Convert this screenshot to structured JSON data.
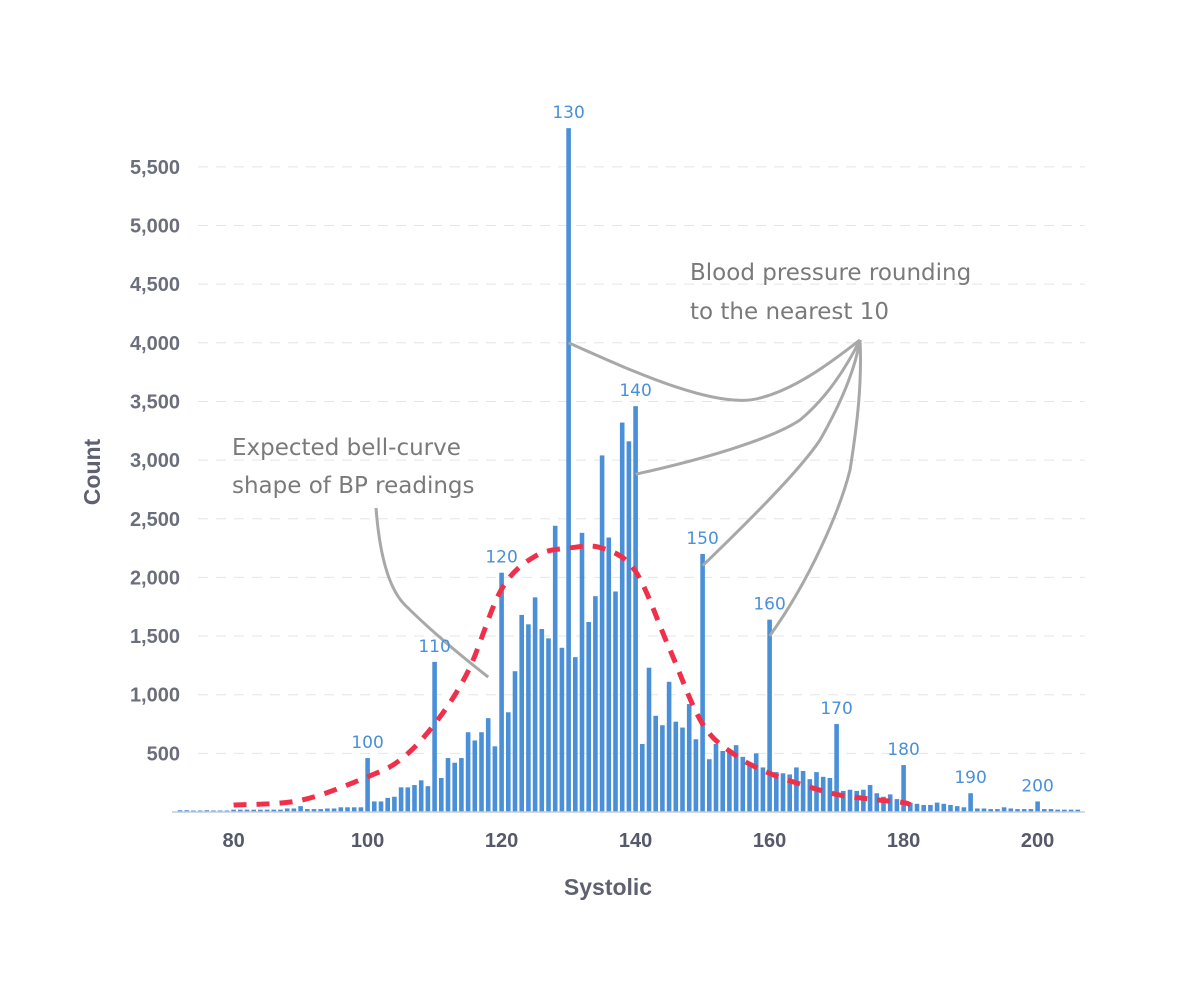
{
  "chart_data": {
    "type": "bar",
    "xlabel": "Systolic",
    "ylabel": "Count",
    "xlim": [
      72,
      207
    ],
    "ylim": [
      0,
      5900
    ],
    "y_ticks": [
      500,
      1000,
      1500,
      2000,
      2500,
      3000,
      3500,
      4000,
      4500,
      5000,
      5500
    ],
    "y_tick_labels": [
      "500",
      "1,000",
      "1,500",
      "2,000",
      "2,500",
      "3,000",
      "3,500",
      "4,000",
      "4,500",
      "5,000",
      "5,500"
    ],
    "x_ticks": [
      80,
      100,
      120,
      140,
      160,
      180,
      200
    ],
    "x_tick_labels": [
      "80",
      "100",
      "120",
      "140",
      "160",
      "180",
      "200"
    ],
    "grid": "horizontal dashed",
    "bar_color": "#4a90d9",
    "curve_color": "#f0304a",
    "series": [
      {
        "x": [
          72,
          73,
          74,
          75,
          76,
          77,
          78,
          79,
          80,
          81,
          82,
          83,
          84,
          85,
          86,
          87,
          88,
          89,
          90,
          91,
          92,
          93,
          94,
          95,
          96,
          97,
          98,
          99,
          100,
          101,
          102,
          103,
          104,
          105,
          106,
          107,
          108,
          109,
          110,
          111,
          112,
          113,
          114,
          115,
          116,
          117,
          118,
          119,
          120,
          121,
          122,
          123,
          124,
          125,
          126,
          127,
          128,
          129,
          130,
          131,
          132,
          133,
          134,
          135,
          136,
          137,
          138,
          139,
          140,
          141,
          142,
          143,
          144,
          145,
          146,
          147,
          148,
          149,
          150,
          151,
          152,
          153,
          154,
          155,
          156,
          157,
          158,
          159,
          160,
          161,
          162,
          163,
          164,
          165,
          166,
          167,
          168,
          169,
          170,
          171,
          172,
          173,
          174,
          175,
          176,
          177,
          178,
          179,
          180,
          181,
          182,
          183,
          184,
          185,
          186,
          187,
          188,
          189,
          190,
          191,
          192,
          193,
          194,
          195,
          196,
          197,
          198,
          199,
          200,
          201,
          202,
          203,
          204,
          205,
          206
        ],
        "values": [
          15,
          15,
          3,
          3,
          15,
          3,
          3,
          3,
          20,
          20,
          20,
          20,
          20,
          20,
          20,
          20,
          30,
          30,
          50,
          25,
          25,
          25,
          30,
          30,
          40,
          40,
          40,
          40,
          460,
          90,
          90,
          120,
          130,
          210,
          210,
          230,
          270,
          220,
          1280,
          290,
          460,
          420,
          460,
          680,
          610,
          680,
          800,
          560,
          2040,
          850,
          1200,
          1680,
          1600,
          1830,
          1560,
          1480,
          2440,
          1400,
          5830,
          1320,
          2380,
          1620,
          1840,
          3040,
          2340,
          1880,
          3320,
          3160,
          3460,
          580,
          1230,
          820,
          740,
          1110,
          770,
          720,
          920,
          620,
          2200,
          450,
          580,
          520,
          510,
          570,
          470,
          400,
          500,
          380,
          1640,
          340,
          330,
          320,
          380,
          350,
          280,
          340,
          300,
          290,
          750,
          180,
          190,
          180,
          190,
          230,
          160,
          130,
          150,
          110,
          400,
          80,
          70,
          60,
          60,
          80,
          70,
          60,
          50,
          40,
          160,
          30,
          30,
          25,
          25,
          40,
          30,
          25,
          25,
          25,
          90,
          25,
          25,
          20,
          20,
          20,
          20
        ]
      }
    ],
    "peak_labels": [
      {
        "x": 100,
        "y": 460,
        "text": "100"
      },
      {
        "x": 110,
        "y": 1280,
        "text": "110"
      },
      {
        "x": 120,
        "y": 2040,
        "text": "120"
      },
      {
        "x": 130,
        "y": 5830,
        "text": "130"
      },
      {
        "x": 140,
        "y": 3460,
        "text": "140"
      },
      {
        "x": 150,
        "y": 2200,
        "text": "150"
      },
      {
        "x": 160,
        "y": 1640,
        "text": "160"
      },
      {
        "x": 170,
        "y": 750,
        "text": "170"
      },
      {
        "x": 180,
        "y": 400,
        "text": "180"
      },
      {
        "x": 190,
        "y": 160,
        "text": "190"
      },
      {
        "x": 200,
        "y": 90,
        "text": "200"
      }
    ],
    "bell_curve": {
      "style": "dashed",
      "x": [
        80,
        90,
        100,
        105,
        110,
        115,
        120,
        125,
        130,
        135,
        140,
        145,
        150,
        155,
        160,
        165,
        170,
        175,
        180,
        181
      ],
      "values": [
        60,
        100,
        300,
        450,
        750,
        1200,
        1900,
        2180,
        2250,
        2250,
        2050,
        1400,
        750,
        480,
        330,
        230,
        150,
        110,
        80,
        60
      ]
    },
    "annotations": {
      "bell": {
        "lines": [
          "Expected bell-curve",
          "shape of BP readings"
        ],
        "target_x": 118,
        "target_y": 1150
      },
      "rounding": {
        "lines": [
          "Blood pressure rounding",
          "to the nearest 10"
        ],
        "targets": [
          {
            "x": 130,
            "y": 4000
          },
          {
            "x": 140,
            "y": 2880
          },
          {
            "x": 150,
            "y": 2100
          },
          {
            "x": 160,
            "y": 1500
          }
        ]
      }
    }
  }
}
